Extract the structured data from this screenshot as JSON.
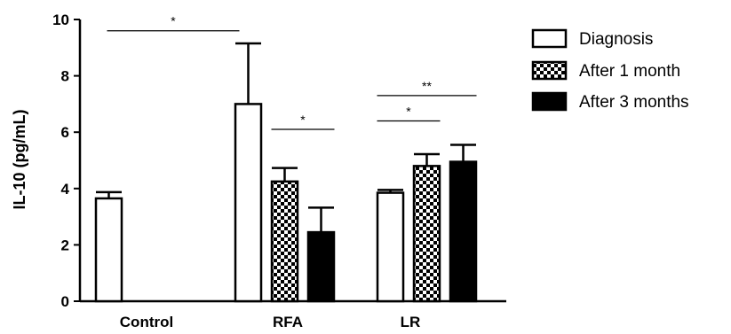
{
  "chart_data": {
    "type": "bar",
    "title": "",
    "xlabel": "",
    "ylabel": "IL-10 (pg/mL)",
    "ylim": [
      0,
      10
    ],
    "yticks": [
      "0",
      "2",
      "4",
      "6",
      "8",
      "10"
    ],
    "categories": [
      "Control",
      "RFA",
      "LR"
    ],
    "series": [
      {
        "name": "Diagnosis",
        "pattern": "white",
        "values": [
          3.65,
          7.0,
          3.85
        ],
        "errors": [
          0.22,
          2.15,
          0.1
        ]
      },
      {
        "name": "After 1 month",
        "pattern": "checker",
        "values": [
          null,
          4.25,
          4.8
        ],
        "errors": [
          null,
          0.48,
          0.42
        ]
      },
      {
        "name": "After 3 months",
        "pattern": "black",
        "values": [
          null,
          2.45,
          4.95
        ],
        "errors": [
          null,
          0.87,
          0.6
        ]
      }
    ],
    "legend_position": "top-right",
    "annotations": [
      {
        "label": "*",
        "from": [
          0,
          0
        ],
        "to": [
          1,
          0
        ],
        "y": 9.6
      },
      {
        "label": "*",
        "from": [
          1,
          1
        ],
        "to": [
          1,
          2
        ],
        "y": 6.1
      },
      {
        "label": "**",
        "from": [
          2,
          0
        ],
        "to": [
          2,
          2
        ],
        "y": 7.3
      },
      {
        "label": "*",
        "from": [
          2,
          0
        ],
        "to": [
          2,
          1
        ],
        "y": 6.4
      }
    ],
    "grid": false
  },
  "colors": {
    "axis": "#000000",
    "bar_fill_white": "#ffffff",
    "bar_fill_black": "#000000"
  }
}
